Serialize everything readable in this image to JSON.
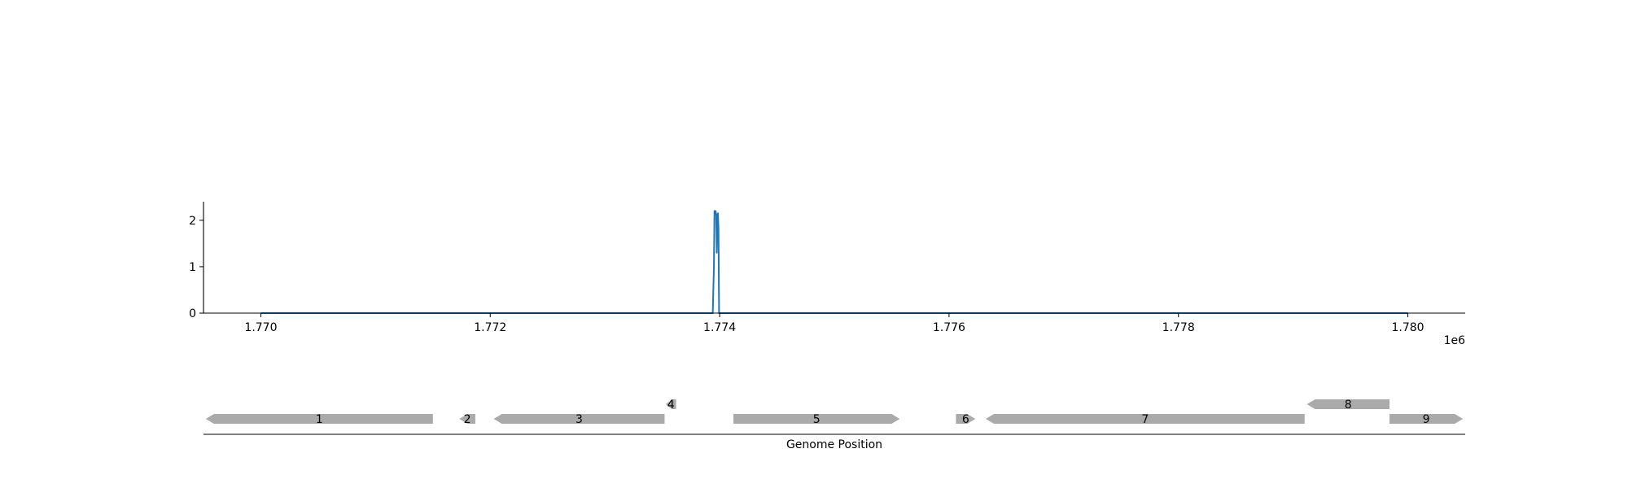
{
  "chart_data": [
    {
      "type": "line",
      "title": "",
      "xlabel": "",
      "ylabel": "",
      "x_offset_label": "1e6",
      "xlim": [
        1769500,
        1780500
      ],
      "ylim": [
        0,
        2.4
      ],
      "xticks": [
        1770000,
        1772000,
        1774000,
        1776000,
        1778000,
        1780000
      ],
      "xtick_labels": [
        "1.770",
        "1.772",
        "1.774",
        "1.776",
        "1.778",
        "1.780"
      ],
      "yticks": [
        0,
        1,
        2
      ],
      "ytick_labels": [
        "0",
        "1",
        "2"
      ],
      "grid": false,
      "series": [
        {
          "color": "#1f77b4",
          "x": [
            1770000,
            1773940,
            1773950,
            1773955,
            1773960,
            1773965,
            1773970,
            1773975,
            1773980,
            1773985,
            1773990,
            1773995,
            1774000,
            1780000
          ],
          "y": [
            0,
            0,
            1.0,
            2.2,
            2.15,
            2.2,
            2.1,
            1.3,
            2.1,
            2.15,
            1.8,
            0,
            0,
            0
          ]
        }
      ]
    },
    {
      "type": "gene_track",
      "xlabel": "Genome Position",
      "xlim": [
        1769500,
        1780500
      ],
      "feature_color": "#aaaaaa",
      "features": [
        {
          "label": "1",
          "start": 1769520,
          "end": 1771500,
          "strand": "-",
          "row": 0
        },
        {
          "label": "2",
          "start": 1771730,
          "end": 1771870,
          "strand": "-",
          "row": 0
        },
        {
          "label": "3",
          "start": 1772030,
          "end": 1773520,
          "strand": "-",
          "row": 0
        },
        {
          "label": "4",
          "start": 1773530,
          "end": 1773620,
          "strand": "-",
          "row": 1
        },
        {
          "label": "5",
          "start": 1774120,
          "end": 1775570,
          "strand": "+",
          "row": 0
        },
        {
          "label": "6",
          "start": 1776060,
          "end": 1776230,
          "strand": "+",
          "row": 0
        },
        {
          "label": "7",
          "start": 1776320,
          "end": 1779100,
          "strand": "-",
          "row": 0
        },
        {
          "label": "8",
          "start": 1779120,
          "end": 1779840,
          "strand": "-",
          "row": 1
        },
        {
          "label": "9",
          "start": 1779840,
          "end": 1780480,
          "strand": "+",
          "row": 0
        }
      ]
    }
  ]
}
